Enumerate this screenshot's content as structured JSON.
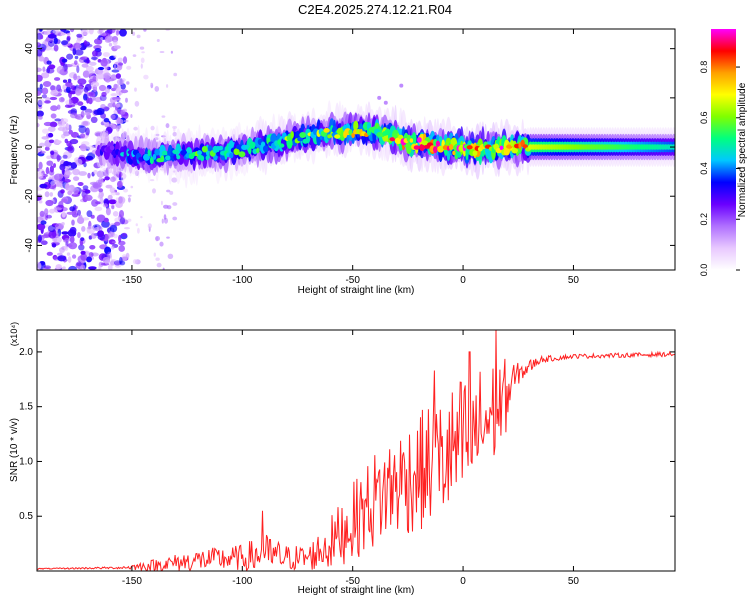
{
  "title": "C2E4.2025.274.12.21.R04",
  "chart_data": [
    {
      "type": "heatmap",
      "xlabel": "Height of straight line (km)",
      "ylabel": "Frequency (Hz)",
      "xlim": [
        -193,
        96
      ],
      "ylim": [
        -50,
        48
      ],
      "xticks": [
        -150,
        -100,
        -50,
        0,
        50
      ],
      "yticks": [
        -40,
        -20,
        0,
        20,
        40
      ],
      "colorbar": {
        "label": "Normalized spectral amplitude",
        "range": [
          0,
          0.95
        ],
        "ticks": [
          "0.0",
          "0.2",
          "0.4",
          "0.6",
          "0.8"
        ],
        "tick_values": [
          0,
          0.2,
          0.4,
          0.6,
          0.8
        ],
        "colors": [
          "#ffffff",
          "#e8c8ff",
          "#b070ff",
          "#6a00ff",
          "#0000ff",
          "#00c8ff",
          "#00ff80",
          "#80ff00",
          "#ffff00",
          "#ffa000",
          "#ff0000",
          "#ff00ff"
        ]
      },
      "ridge": [
        {
          "x": -193,
          "f": 0,
          "amp": 0.15
        },
        {
          "x": -165,
          "f": -1,
          "amp": 0.25
        },
        {
          "x": -155,
          "f": -3,
          "amp": 0.4
        },
        {
          "x": -140,
          "f": -4,
          "amp": 0.45
        },
        {
          "x": -120,
          "f": -3,
          "amp": 0.5
        },
        {
          "x": -100,
          "f": -1,
          "amp": 0.5
        },
        {
          "x": -80,
          "f": 3,
          "amp": 0.55
        },
        {
          "x": -60,
          "f": 6,
          "amp": 0.6
        },
        {
          "x": -45,
          "f": 7,
          "amp": 0.65
        },
        {
          "x": -35,
          "f": 5,
          "amp": 0.7
        },
        {
          "x": -25,
          "f": 2,
          "amp": 0.85
        },
        {
          "x": -10,
          "f": 0,
          "amp": 0.8
        },
        {
          "x": 5,
          "f": -1,
          "amp": 0.8
        },
        {
          "x": 20,
          "f": 0,
          "amp": 0.8
        },
        {
          "x": 30,
          "f": 0,
          "amp": 0.7
        },
        {
          "x": 96,
          "f": 0,
          "amp": 0.5
        }
      ]
    },
    {
      "type": "line",
      "xlabel": "Height of straight line (km)",
      "ylabel": "SNR (10 * v/v)",
      "y_multiplier": "(x10⁴)",
      "xlim": [
        -193,
        96
      ],
      "ylim": [
        0,
        2.2
      ],
      "xticks": [
        -150,
        -100,
        -50,
        0,
        50
      ],
      "yticks": [
        "0.5",
        "1.0",
        "1.5",
        "2.0"
      ],
      "ytick_values": [
        0.5,
        1.0,
        1.5,
        2.0
      ],
      "color": "#ff2020",
      "envelope": [
        {
          "x": -193,
          "base": 0.02,
          "amp": 0.005
        },
        {
          "x": -155,
          "base": 0.03,
          "amp": 0.01
        },
        {
          "x": -140,
          "base": 0.05,
          "amp": 0.06
        },
        {
          "x": -120,
          "base": 0.1,
          "amp": 0.1
        },
        {
          "x": -100,
          "base": 0.12,
          "amp": 0.12
        },
        {
          "x": -90,
          "base": 0.15,
          "amp": 0.2
        },
        {
          "x": -80,
          "base": 0.12,
          "amp": 0.12
        },
        {
          "x": -70,
          "base": 0.12,
          "amp": 0.12
        },
        {
          "x": -60,
          "base": 0.25,
          "amp": 0.25
        },
        {
          "x": -50,
          "base": 0.45,
          "amp": 0.35
        },
        {
          "x": -40,
          "base": 0.65,
          "amp": 0.45
        },
        {
          "x": -30,
          "base": 0.8,
          "amp": 0.5
        },
        {
          "x": -20,
          "base": 0.9,
          "amp": 0.55
        },
        {
          "x": -10,
          "base": 1.0,
          "amp": 0.6
        },
        {
          "x": 0,
          "base": 1.15,
          "amp": 0.65
        },
        {
          "x": 10,
          "base": 1.35,
          "amp": 0.55
        },
        {
          "x": 18,
          "base": 1.55,
          "amp": 0.4
        },
        {
          "x": 25,
          "base": 1.8,
          "amp": 0.1
        },
        {
          "x": 35,
          "base": 1.93,
          "amp": 0.03
        },
        {
          "x": 50,
          "base": 1.96,
          "amp": 0.02
        },
        {
          "x": 96,
          "base": 1.98,
          "amp": 0.02
        }
      ],
      "peaks": [
        {
          "x": -91,
          "y": 0.55
        },
        {
          "x": -13,
          "y": 1.83
        },
        {
          "x": 3,
          "y": 2.0
        },
        {
          "x": 15,
          "y": 2.2
        }
      ]
    }
  ]
}
